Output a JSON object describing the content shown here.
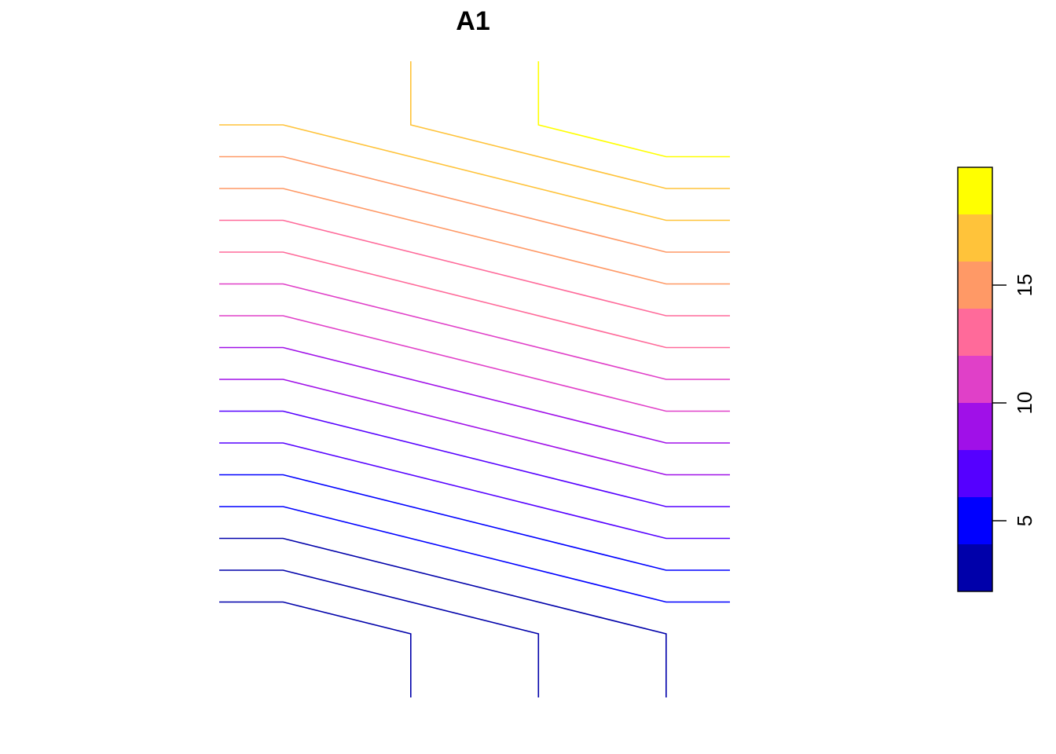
{
  "chart_data": {
    "type": "contour",
    "title": "A1",
    "x_range": [
      0,
      8
    ],
    "y_range": [
      0,
      20
    ],
    "series": [
      {
        "level": 2,
        "color": "#0000AA",
        "points": [
          [
            0,
            3
          ],
          [
            1,
            3
          ],
          [
            3,
            2
          ],
          [
            3,
            0
          ]
        ]
      },
      {
        "level": 3,
        "color": "#0000AA",
        "points": [
          [
            0,
            4
          ],
          [
            1,
            4
          ],
          [
            5,
            2
          ],
          [
            5,
            0
          ]
        ]
      },
      {
        "level": 4,
        "color": "#0000AA",
        "points": [
          [
            0,
            5
          ],
          [
            1,
            5
          ],
          [
            7,
            2
          ],
          [
            7,
            0
          ]
        ]
      },
      {
        "level": 5,
        "color": "#0000FF",
        "points": [
          [
            0,
            6
          ],
          [
            1,
            6
          ],
          [
            7,
            3
          ],
          [
            8,
            3
          ]
        ]
      },
      {
        "level": 6,
        "color": "#0000FF",
        "points": [
          [
            0,
            7
          ],
          [
            1,
            7
          ],
          [
            7,
            4
          ],
          [
            8,
            4
          ]
        ]
      },
      {
        "level": 7,
        "color": "#5500FF",
        "points": [
          [
            0,
            8
          ],
          [
            1,
            8
          ],
          [
            7,
            5
          ],
          [
            8,
            5
          ]
        ]
      },
      {
        "level": 8,
        "color": "#5500FF",
        "points": [
          [
            0,
            9
          ],
          [
            1,
            9
          ],
          [
            7,
            6
          ],
          [
            8,
            6
          ]
        ]
      },
      {
        "level": 9,
        "color": "#A010E8",
        "points": [
          [
            0,
            10
          ],
          [
            1,
            10
          ],
          [
            7,
            7
          ],
          [
            8,
            7
          ]
        ]
      },
      {
        "level": 10,
        "color": "#A010E8",
        "points": [
          [
            0,
            11
          ],
          [
            1,
            11
          ],
          [
            7,
            8
          ],
          [
            8,
            8
          ]
        ]
      },
      {
        "level": 11,
        "color": "#E040C8",
        "points": [
          [
            0,
            12
          ],
          [
            1,
            12
          ],
          [
            7,
            9
          ],
          [
            8,
            9
          ]
        ]
      },
      {
        "level": 12,
        "color": "#E040C8",
        "points": [
          [
            0,
            13
          ],
          [
            1,
            13
          ],
          [
            7,
            10
          ],
          [
            8,
            10
          ]
        ]
      },
      {
        "level": 13,
        "color": "#FF6A9A",
        "points": [
          [
            0,
            14
          ],
          [
            1,
            14
          ],
          [
            7,
            11
          ],
          [
            8,
            11
          ]
        ]
      },
      {
        "level": 14,
        "color": "#FF6A9A",
        "points": [
          [
            0,
            15
          ],
          [
            1,
            15
          ],
          [
            7,
            12
          ],
          [
            8,
            12
          ]
        ]
      },
      {
        "level": 15,
        "color": "#FF9966",
        "points": [
          [
            0,
            16
          ],
          [
            1,
            16
          ],
          [
            7,
            13
          ],
          [
            8,
            13
          ]
        ]
      },
      {
        "level": 16,
        "color": "#FF9966",
        "points": [
          [
            0,
            17
          ],
          [
            1,
            17
          ],
          [
            7,
            14
          ],
          [
            8,
            14
          ]
        ]
      },
      {
        "level": 17,
        "color": "#FFC33A",
        "points": [
          [
            0,
            18
          ],
          [
            1,
            18
          ],
          [
            7,
            15
          ],
          [
            8,
            15
          ]
        ]
      },
      {
        "level": 18,
        "color": "#FFC33A",
        "points": [
          [
            3,
            20
          ],
          [
            3,
            18
          ],
          [
            7,
            16
          ],
          [
            8,
            16
          ]
        ]
      },
      {
        "level": 19,
        "color": "#FFFF00",
        "points": [
          [
            5,
            20
          ],
          [
            5,
            18
          ],
          [
            7,
            17
          ],
          [
            8,
            17
          ]
        ]
      }
    ],
    "legend": {
      "placement": "right",
      "range": [
        2,
        20
      ],
      "bands": [
        {
          "from": 2,
          "to": 4,
          "color": "#0000AA"
        },
        {
          "from": 4,
          "to": 6,
          "color": "#0000FF"
        },
        {
          "from": 6,
          "to": 8,
          "color": "#5500FF"
        },
        {
          "from": 8,
          "to": 10,
          "color": "#A010E8"
        },
        {
          "from": 10,
          "to": 12,
          "color": "#E040C8"
        },
        {
          "from": 12,
          "to": 14,
          "color": "#FF6A9A"
        },
        {
          "from": 14,
          "to": 16,
          "color": "#FF9966"
        },
        {
          "from": 16,
          "to": 18,
          "color": "#FFC33A"
        },
        {
          "from": 18,
          "to": 20,
          "color": "#FFFF00"
        }
      ],
      "ticks": [
        5,
        10,
        15
      ],
      "tick_labels": [
        "5",
        "10",
        "15"
      ]
    }
  }
}
